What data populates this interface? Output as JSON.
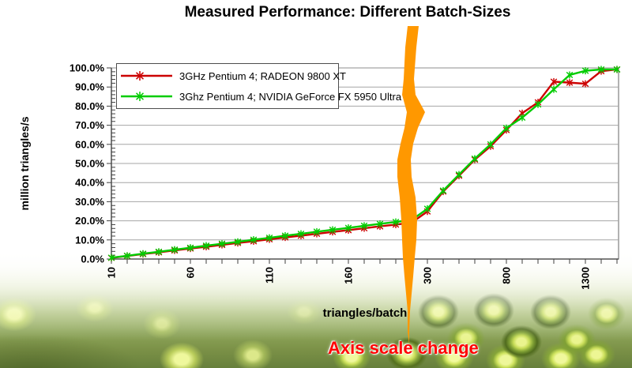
{
  "title": "Measured Performance: Different Batch-Sizes",
  "annotation": {
    "axis_scale_change": "Axis scale change"
  },
  "axes": {
    "y_title": "million triangles/s",
    "x_title": "triangles/batch",
    "y_ticks": [
      "0.0%",
      "10.0%",
      "20.0%",
      "30.0%",
      "40.0%",
      "50.0%",
      "60.0%",
      "70.0%",
      "80.0%",
      "90.0%",
      "100.0%"
    ],
    "x_ticks": [
      "10",
      "60",
      "110",
      "160",
      "300",
      "800",
      "1300"
    ]
  },
  "colors": {
    "radeon": "#cc0000",
    "nvidia": "#00cc00",
    "band": "#ff9800",
    "grid": "#a6a6a6",
    "axis": "#404040",
    "plot_border": "#7f7f7f",
    "annotation_red": "#ff0000"
  },
  "chart_data": {
    "type": "line",
    "title": "Measured Performance: Different Batch-Sizes",
    "xlabel": "triangles/batch",
    "ylabel": "million triangles/s",
    "ylim": [
      0,
      100
    ],
    "grid": true,
    "legend_position": "top-left",
    "x_scale_note": "x axis linear 10-200 step 10, then 300-1500 step 100; orange break marks axis scale change",
    "x": [
      10,
      20,
      30,
      40,
      50,
      60,
      70,
      80,
      90,
      100,
      110,
      120,
      130,
      140,
      150,
      160,
      170,
      180,
      190,
      200,
      300,
      400,
      500,
      600,
      700,
      800,
      900,
      1000,
      1100,
      1200,
      1300,
      1400,
      1500
    ],
    "series": [
      {
        "name": "3GHz Pentium 4; RADEON 9800 XT",
        "color": "#cc0000",
        "marker": "star",
        "values": [
          0.6,
          1.6,
          2.6,
          3.5,
          4.5,
          5.5,
          6.4,
          7.4,
          8.4,
          9.3,
          10.3,
          11.3,
          12.2,
          13.2,
          14.2,
          15.1,
          16.1,
          17.1,
          18.0,
          19.0,
          24.9,
          35.3,
          43.6,
          52.0,
          59.0,
          67.5,
          76.3,
          82.0,
          92.8,
          92.3,
          91.7,
          98.3,
          99.2
        ]
      },
      {
        "name": "3Ghz Pentium 4; NVIDIA GeForce FX 5950 Ultra",
        "color": "#00cc00",
        "marker": "star",
        "values": [
          0.7,
          1.7,
          2.8,
          3.8,
          4.9,
          5.9,
          7.0,
          8.0,
          9.0,
          10.1,
          11.1,
          12.2,
          13.2,
          14.3,
          15.3,
          16.3,
          17.4,
          18.4,
          19.4,
          20.4,
          26.3,
          35.8,
          44.2,
          52.5,
          60.0,
          68.5,
          74.0,
          80.9,
          88.8,
          96.3,
          98.5,
          99.2,
          99.2
        ]
      }
    ]
  }
}
